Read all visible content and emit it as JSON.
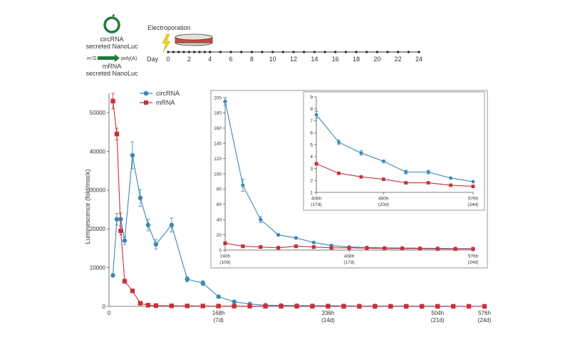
{
  "colors": {
    "circ": "#3a87b8",
    "mrna": "#c8313a",
    "axis": "#555555",
    "green": "#1f7a3a",
    "dot": "#333333"
  },
  "schematic": {
    "circ_label_line1": "circRNA",
    "circ_label_line2": "secreted NanoLuc",
    "mrna_cap": "m⁷G",
    "mrna_polya": "poly(A)",
    "mrna_label_line1": "mRNA",
    "mrna_label_line2": "secreted NanoLuc",
    "electroporation": "Electroporation",
    "day_label": "Day",
    "day_ticks": [
      "0",
      "2",
      "4",
      "6",
      "8",
      "10",
      "12",
      "14",
      "16",
      "18",
      "20",
      "22",
      "24"
    ],
    "dot_days": [
      0,
      0.5,
      1,
      1.5,
      2,
      2.5,
      3,
      3.5,
      4,
      5,
      6,
      7,
      8,
      9,
      10,
      11,
      12,
      13,
      14,
      15,
      16,
      17,
      18,
      19,
      20,
      21,
      22,
      23,
      24
    ]
  },
  "chart_data": [
    {
      "type": "line",
      "id": "main",
      "ylabel": "Luminescence (fold/mock)",
      "xlim": [
        0,
        576
      ],
      "ylim": [
        0,
        55000
      ],
      "yticks": [
        0,
        10000,
        20000,
        30000,
        40000,
        50000
      ],
      "xticks": [
        {
          "v": 168,
          "l1": "168h",
          "l2": "(7d)"
        },
        {
          "v": 336,
          "l1": "336h",
          "l2": "(14d)"
        },
        {
          "v": 504,
          "l1": "504h",
          "l2": "(21d)"
        },
        {
          "v": 576,
          "l1": "576h",
          "l2": "(24d)"
        }
      ],
      "zero_label": "0",
      "legend": [
        "circRNA",
        "mRNA"
      ],
      "series": [
        {
          "name": "circRNA",
          "color_key": "circ",
          "x": [
            6,
            12,
            18,
            24,
            36,
            48,
            60,
            72,
            96,
            120,
            144,
            168,
            192,
            216,
            240,
            264,
            288,
            312,
            336,
            360,
            384,
            408,
            432,
            456,
            480,
            504,
            528,
            552,
            576
          ],
          "y": [
            8000,
            22500,
            22500,
            17000,
            39000,
            28000,
            21000,
            16000,
            21000,
            7000,
            6000,
            2500,
            1200,
            600,
            300,
            250,
            200,
            180,
            150,
            120,
            100,
            90,
            80,
            70,
            60,
            50,
            40,
            30,
            20
          ],
          "err": [
            0,
            1500,
            1600,
            1000,
            3500,
            2200,
            1500,
            1200,
            1800,
            700,
            600,
            300,
            0,
            0,
            0,
            0,
            0,
            0,
            0,
            0,
            0,
            0,
            0,
            0,
            0,
            0,
            0,
            0,
            0
          ]
        },
        {
          "name": "mRNA",
          "color_key": "mrna",
          "x": [
            6,
            12,
            18,
            24,
            36,
            48,
            60,
            72,
            96,
            120,
            144,
            168,
            192,
            216,
            240,
            264,
            288,
            312,
            336,
            360,
            384,
            408,
            432,
            456,
            480,
            504,
            528,
            552,
            576
          ],
          "y": [
            53000,
            44500,
            19500,
            6500,
            4000,
            800,
            300,
            200,
            150,
            120,
            100,
            80,
            60,
            50,
            40,
            30,
            25,
            20,
            18,
            15,
            12,
            10,
            8,
            7,
            6,
            5,
            4,
            3,
            2
          ],
          "err": [
            2000,
            1500,
            1000,
            500,
            400,
            0,
            0,
            0,
            0,
            0,
            0,
            0,
            0,
            0,
            0,
            0,
            0,
            0,
            0,
            0,
            0,
            0,
            0,
            0,
            0,
            0,
            0,
            0,
            0
          ]
        }
      ]
    },
    {
      "type": "line",
      "id": "inset1",
      "xlim": [
        240,
        576
      ],
      "ylim": [
        0,
        200
      ],
      "yticks": [
        0,
        20,
        40,
        60,
        80,
        100,
        120,
        140,
        160,
        180,
        200
      ],
      "xticks": [
        {
          "v": 240,
          "l1": "240h",
          "l2": "(10d)"
        },
        {
          "v": 408,
          "l1": "408h",
          "l2": "(17d)"
        },
        {
          "v": 576,
          "l1": "576h",
          "l2": "(24d)"
        }
      ],
      "series": [
        {
          "name": "circRNA",
          "color_key": "circ",
          "x": [
            240,
            264,
            288,
            312,
            336,
            360,
            384,
            408,
            432,
            456,
            480,
            504,
            528,
            552,
            576
          ],
          "y": [
            195,
            85,
            40,
            20,
            16,
            10,
            6,
            4,
            3.5,
            3,
            2.8,
            2.5,
            2.2,
            2,
            1.9
          ],
          "err": [
            5,
            8,
            4,
            1,
            1,
            0,
            0,
            0,
            0,
            0,
            0,
            0,
            0,
            0,
            0
          ]
        },
        {
          "name": "mRNA",
          "color_key": "mrna",
          "x": [
            240,
            264,
            288,
            312,
            336,
            360,
            384,
            408,
            432,
            456,
            480,
            504,
            528,
            552,
            576
          ],
          "y": [
            9,
            5,
            4,
            3,
            5,
            4,
            3,
            3,
            2.5,
            2,
            2,
            1.8,
            1.6,
            1.5,
            1.5
          ],
          "err": [
            0,
            0,
            0,
            0,
            0,
            0,
            0,
            0,
            0,
            0,
            0,
            0,
            0,
            0,
            0
          ]
        }
      ]
    },
    {
      "type": "line",
      "id": "inset2",
      "xlim": [
        408,
        576
      ],
      "ylim": [
        1,
        9
      ],
      "yticks": [
        1,
        2,
        3,
        4,
        5,
        6,
        7,
        8,
        9
      ],
      "xticks": [
        {
          "v": 408,
          "l1": "408h",
          "l2": "(17d)"
        },
        {
          "v": 480,
          "l1": "480h",
          "l2": "(20d)"
        },
        {
          "v": 576,
          "l1": "576h",
          "l2": "(24d)"
        }
      ],
      "series": [
        {
          "name": "circRNA",
          "color_key": "circ",
          "x": [
            408,
            432,
            456,
            480,
            504,
            528,
            552,
            576
          ],
          "y": [
            7.5,
            5.2,
            4.3,
            3.6,
            2.7,
            2.7,
            2.2,
            1.9
          ],
          "err": [
            0.3,
            0.2,
            0.2,
            0.1,
            0.15,
            0.15,
            0,
            0
          ]
        },
        {
          "name": "mRNA",
          "color_key": "mrna",
          "x": [
            408,
            432,
            456,
            480,
            504,
            528,
            552,
            576
          ],
          "y": [
            3.4,
            2.6,
            2.3,
            2.1,
            1.8,
            1.8,
            1.6,
            1.5
          ],
          "err": [
            0,
            0,
            0,
            0,
            0,
            0,
            0,
            0
          ]
        }
      ]
    }
  ]
}
